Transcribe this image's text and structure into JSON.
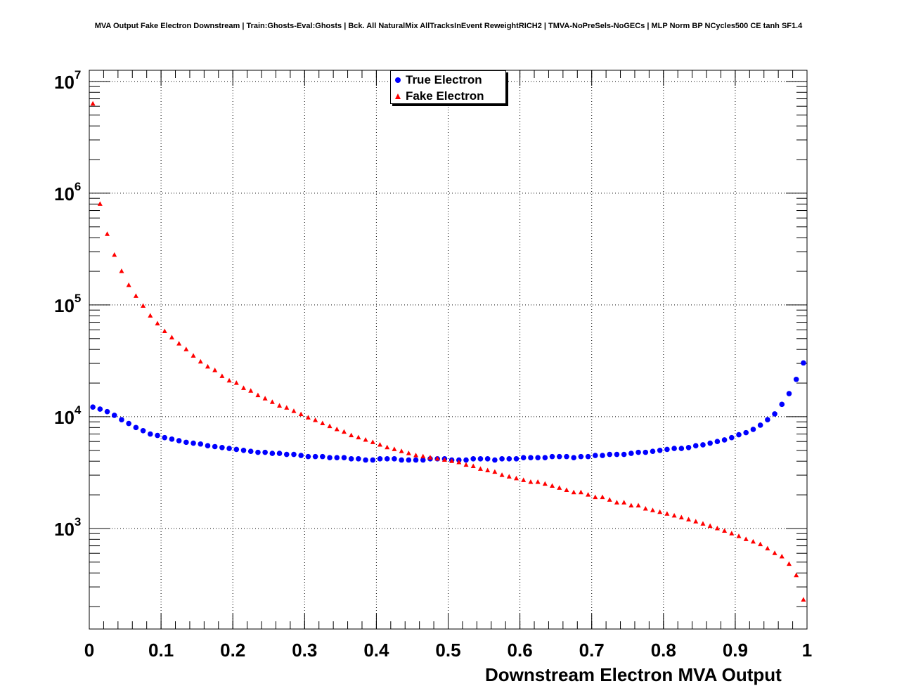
{
  "chart_data": {
    "type": "scatter",
    "title": "MVA Output Fake Electron Downstream | Train:Ghosts-Eval:Ghosts | Bck. All NaturalMix AllTracksInEvent ReweightRICH2 | TMVA-NoPreSels-NoGECs | MLP Norm BP NCycles500 CE tanh SF1.4",
    "xlabel": "Downstream Electron MVA Output",
    "ylabel": "",
    "xlim": [
      0,
      1
    ],
    "ylim": [
      126,
      12589254
    ],
    "yscale": "log",
    "grid": true,
    "legend_position": "top-center",
    "x_ticks": [
      "0",
      "0.1",
      "0.2",
      "0.3",
      "0.4",
      "0.5",
      "0.6",
      "0.7",
      "0.8",
      "0.9",
      "1"
    ],
    "y_ticks": [
      {
        "base": "10",
        "exp": "3",
        "value": 1000
      },
      {
        "base": "10",
        "exp": "4",
        "value": 10000
      },
      {
        "base": "10",
        "exp": "5",
        "value": 100000
      },
      {
        "base": "10",
        "exp": "6",
        "value": 1000000
      },
      {
        "base": "10",
        "exp": "7",
        "value": 10000000
      }
    ],
    "x": [
      0.005,
      0.015,
      0.025,
      0.035,
      0.045,
      0.055,
      0.065,
      0.075,
      0.085,
      0.095,
      0.105,
      0.115,
      0.125,
      0.135,
      0.145,
      0.155,
      0.165,
      0.175,
      0.185,
      0.195,
      0.205,
      0.215,
      0.225,
      0.235,
      0.245,
      0.255,
      0.265,
      0.275,
      0.285,
      0.295,
      0.305,
      0.315,
      0.325,
      0.335,
      0.345,
      0.355,
      0.365,
      0.375,
      0.385,
      0.395,
      0.405,
      0.415,
      0.425,
      0.435,
      0.445,
      0.455,
      0.465,
      0.475,
      0.485,
      0.495,
      0.505,
      0.515,
      0.525,
      0.535,
      0.545,
      0.555,
      0.565,
      0.575,
      0.585,
      0.595,
      0.605,
      0.615,
      0.625,
      0.635,
      0.645,
      0.655,
      0.665,
      0.675,
      0.685,
      0.695,
      0.705,
      0.715,
      0.725,
      0.735,
      0.745,
      0.755,
      0.765,
      0.775,
      0.785,
      0.795,
      0.805,
      0.815,
      0.825,
      0.835,
      0.845,
      0.855,
      0.865,
      0.875,
      0.885,
      0.895,
      0.905,
      0.915,
      0.925,
      0.935,
      0.945,
      0.955,
      0.965,
      0.975,
      0.985,
      0.995
    ],
    "series": [
      {
        "name": "True Electron",
        "color": "#0000ff",
        "marker": "circle",
        "values": [
          12200,
          11700,
          11100,
          10300,
          9400,
          8700,
          8000,
          7500,
          7000,
          6800,
          6500,
          6300,
          6100,
          5900,
          5800,
          5700,
          5500,
          5400,
          5300,
          5200,
          5100,
          5000,
          4900,
          4800,
          4800,
          4700,
          4700,
          4600,
          4600,
          4500,
          4400,
          4400,
          4400,
          4300,
          4300,
          4300,
          4200,
          4200,
          4100,
          4100,
          4200,
          4200,
          4200,
          4100,
          4100,
          4100,
          4100,
          4200,
          4200,
          4200,
          4100,
          4100,
          4100,
          4200,
          4200,
          4200,
          4100,
          4200,
          4200,
          4200,
          4300,
          4300,
          4300,
          4300,
          4400,
          4400,
          4400,
          4300,
          4400,
          4400,
          4500,
          4500,
          4600,
          4600,
          4600,
          4700,
          4800,
          4800,
          4900,
          5000,
          5100,
          5200,
          5200,
          5300,
          5500,
          5600,
          5800,
          6000,
          6200,
          6500,
          6900,
          7200,
          7700,
          8400,
          9400,
          10600,
          12900,
          16100,
          21600,
          30300
        ]
      },
      {
        "name": "Fake Electron",
        "color": "#ff0000",
        "marker": "triangle",
        "values": [
          6300000,
          800000,
          430000,
          280000,
          200000,
          150000,
          120000,
          98000,
          80000,
          68000,
          58000,
          51000,
          45000,
          40000,
          35000,
          31000,
          28000,
          26000,
          23000,
          21000,
          20000,
          18000,
          17000,
          15500,
          14500,
          13500,
          12500,
          12000,
          11200,
          10500,
          9800,
          9300,
          8700,
          8200,
          7700,
          7300,
          6800,
          6500,
          6200,
          5900,
          5600,
          5300,
          5100,
          4900,
          4700,
          4500,
          4400,
          4300,
          4200,
          4100,
          4000,
          3900,
          3700,
          3600,
          3400,
          3300,
          3200,
          3000,
          2900,
          2800,
          2700,
          2600,
          2600,
          2500,
          2400,
          2300,
          2200,
          2100,
          2100,
          2000,
          1900,
          1900,
          1800,
          1700,
          1700,
          1600,
          1600,
          1500,
          1450,
          1400,
          1350,
          1300,
          1250,
          1200,
          1150,
          1100,
          1050,
          1000,
          950,
          900,
          850,
          800,
          760,
          720,
          660,
          600,
          560,
          480,
          380,
          230
        ]
      }
    ]
  }
}
